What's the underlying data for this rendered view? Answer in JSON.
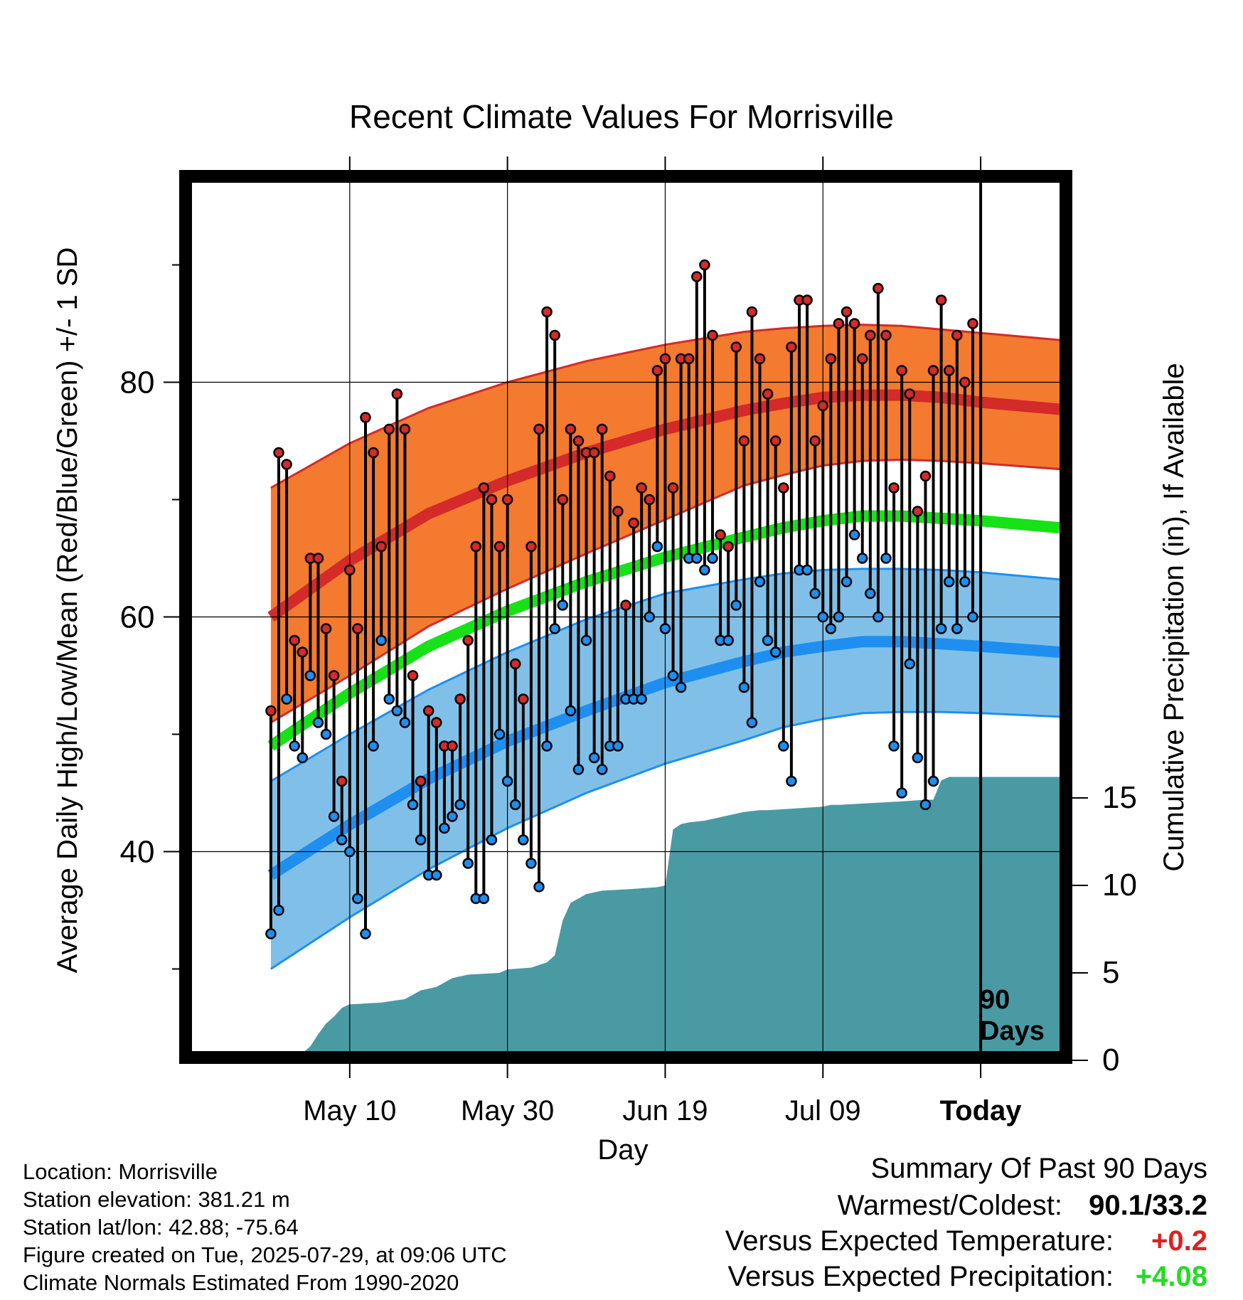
{
  "chart_data": {
    "type": "line",
    "title": "Recent Climate Values For Morrisville",
    "xlabel": "Day",
    "ylabel_left": "Average Daily High/Low/Mean (Red/Blue/Green) +/- 1 SD",
    "ylabel_right": "Cumulative Precipitation (in), If Available",
    "x_ticks": [
      {
        "day": 10,
        "label": "May 10"
      },
      {
        "day": 30,
        "label": "May 30"
      },
      {
        "day": 50,
        "label": "Jun 19"
      },
      {
        "day": 70,
        "label": "Jul 09"
      },
      {
        "day": 90,
        "label": "Today"
      }
    ],
    "y_left_ticks": [
      40,
      60,
      80
    ],
    "y_left_range": [
      23,
      97
    ],
    "y_right_ticks": [
      0,
      5,
      10,
      15
    ],
    "x_range": [
      -10,
      100
    ],
    "today_marker": {
      "day": 90,
      "label_line1": "90",
      "label_line2": "Days"
    },
    "normals": {
      "days": [
        0,
        10,
        20,
        30,
        40,
        50,
        60,
        65,
        70,
        75,
        80,
        85,
        90,
        100
      ],
      "high_mean": [
        60.0,
        64.8,
        68.8,
        71.6,
        74.0,
        76.0,
        77.6,
        78.2,
        78.7,
        78.9,
        78.9,
        78.7,
        78.3,
        77.7
      ],
      "high_upper": [
        71.0,
        74.8,
        77.8,
        80.0,
        81.8,
        83.2,
        84.3,
        84.6,
        84.8,
        84.9,
        84.8,
        84.5,
        84.2,
        83.6
      ],
      "high_lower": [
        51.0,
        55.0,
        59.2,
        62.4,
        65.4,
        68.3,
        71.2,
        72.1,
        72.9,
        73.3,
        73.4,
        73.3,
        73.1,
        72.6
      ],
      "mean": [
        49.0,
        53.5,
        57.5,
        60.5,
        63.0,
        65.1,
        66.8,
        67.6,
        68.2,
        68.6,
        68.6,
        68.4,
        68.2,
        67.6
      ],
      "low_mean": [
        38.0,
        42.3,
        46.2,
        49.4,
        52.0,
        54.4,
        56.2,
        57.0,
        57.5,
        57.9,
        57.9,
        57.7,
        57.5,
        57.0
      ],
      "low_upper": [
        46.0,
        50.0,
        53.8,
        57.0,
        59.8,
        62.0,
        63.2,
        63.7,
        64.0,
        64.1,
        64.1,
        64.0,
        63.8,
        63.2
      ],
      "low_lower": [
        30.0,
        34.4,
        38.5,
        42.0,
        45.0,
        47.5,
        49.5,
        50.6,
        51.3,
        51.8,
        51.9,
        51.9,
        51.8,
        51.5
      ]
    },
    "observed": {
      "days": [
        0,
        1,
        2,
        3,
        4,
        5,
        6,
        7,
        8,
        9,
        10,
        11,
        12,
        13,
        14,
        15,
        16,
        17,
        18,
        19,
        20,
        21,
        22,
        23,
        24,
        25,
        26,
        27,
        28,
        29,
        30,
        31,
        32,
        33,
        34,
        35,
        36,
        37,
        38,
        39,
        40,
        41,
        42,
        43,
        44,
        45,
        46,
        47,
        48,
        49,
        50,
        51,
        52,
        53,
        54,
        55,
        56,
        57,
        58,
        59,
        60,
        61,
        62,
        63,
        64,
        65,
        66,
        67,
        68,
        69,
        70,
        71,
        72,
        73,
        74,
        75,
        76,
        77,
        78,
        79,
        80,
        81,
        82,
        83,
        84,
        85,
        86,
        87,
        88,
        89
      ],
      "high": [
        52,
        74,
        73,
        58,
        57,
        65,
        65,
        59,
        55,
        46,
        64,
        59,
        77,
        74,
        66,
        76,
        79,
        76,
        55,
        46,
        52,
        51,
        49,
        49,
        53,
        58,
        66,
        71,
        70,
        66,
        70,
        56,
        53,
        66,
        76,
        86,
        84,
        70,
        76,
        75,
        74,
        74,
        76,
        72,
        69,
        61,
        68,
        71,
        70,
        81,
        82,
        71,
        82,
        82,
        89,
        90,
        84,
        67,
        66,
        83,
        75,
        86,
        82,
        79,
        75,
        71,
        83,
        87,
        87,
        75,
        78,
        82,
        85,
        86,
        85,
        82,
        84,
        88,
        84,
        71,
        81,
        79,
        69,
        72,
        81,
        87,
        81,
        84,
        80,
        85
      ],
      "low": [
        33,
        35,
        53,
        49,
        48,
        55,
        51,
        50,
        43,
        41,
        40,
        36,
        33,
        49,
        58,
        53,
        52,
        51,
        44,
        41,
        38,
        38,
        42,
        43,
        44,
        39,
        36,
        36,
        41,
        50,
        46,
        44,
        41,
        39,
        37,
        49,
        59,
        61,
        52,
        47,
        58,
        48,
        47,
        49,
        49,
        53,
        53,
        53,
        60,
        66,
        59,
        55,
        54,
        65,
        65,
        64,
        65,
        58,
        58,
        61,
        54,
        51,
        63,
        58,
        57,
        49,
        46,
        64,
        64,
        62,
        60,
        59,
        60,
        63,
        67,
        65,
        62,
        60,
        65,
        49,
        45,
        56,
        48,
        44,
        46,
        59,
        63,
        59,
        63,
        60
      ]
    },
    "precipitation": {
      "days": [
        3,
        5,
        6,
        7,
        8,
        9,
        10,
        14,
        17,
        19,
        21,
        23,
        25,
        29,
        30,
        33,
        35,
        36,
        37,
        38,
        40,
        42,
        46,
        49,
        50,
        51,
        52,
        53,
        55,
        56,
        60,
        62,
        63,
        70,
        71,
        72,
        80,
        83,
        84,
        85,
        86,
        100
      ],
      "cumulative": [
        0,
        0.8,
        1.5,
        2.1,
        2.5,
        3,
        3.2,
        3.3,
        3.5,
        4,
        4.2,
        4.7,
        4.9,
        5,
        5.2,
        5.3,
        5.6,
        6,
        8,
        9,
        9.5,
        9.7,
        9.8,
        9.9,
        10,
        13.2,
        13.5,
        13.6,
        13.7,
        13.8,
        14.2,
        14.3,
        14.3,
        14.5,
        14.6,
        14.6,
        14.8,
        14.9,
        14.9,
        16,
        16.2,
        16.2
      ]
    }
  },
  "colors": {
    "high_band": "#f37a2e",
    "high_line": "#d42a2a",
    "high_edge": "#d42a2a",
    "mean_line": "#17e117",
    "low_band": "#80c0e8",
    "low_line": "#1e8ff0",
    "low_edge": "#1e8ff0",
    "precip_fill": "#4a9aa4",
    "high_dot": "#d42a2a",
    "low_dot": "#1e8ff0",
    "positive_temp": "#e02020",
    "positive_precip": "#22dd22"
  },
  "info": {
    "location": "Location: Morrisville",
    "elevation": "Station elevation: 381.21 m",
    "latlon": "Station lat/lon: 42.88; -75.64",
    "created": "Figure created on Tue, 2025-07-29, at 09:06 UTC",
    "normals": "Climate Normals Estimated From 1990-2020"
  },
  "summary": {
    "heading": "Summary Of Past 90 Days",
    "warm_cold_label": "Warmest/Coldest:",
    "warm_cold_value": "90.1/33.2",
    "temp_label": "Versus Expected Temperature:",
    "temp_value": "+0.2",
    "precip_label": "Versus Expected Precipitation:",
    "precip_value": "+4.08"
  }
}
